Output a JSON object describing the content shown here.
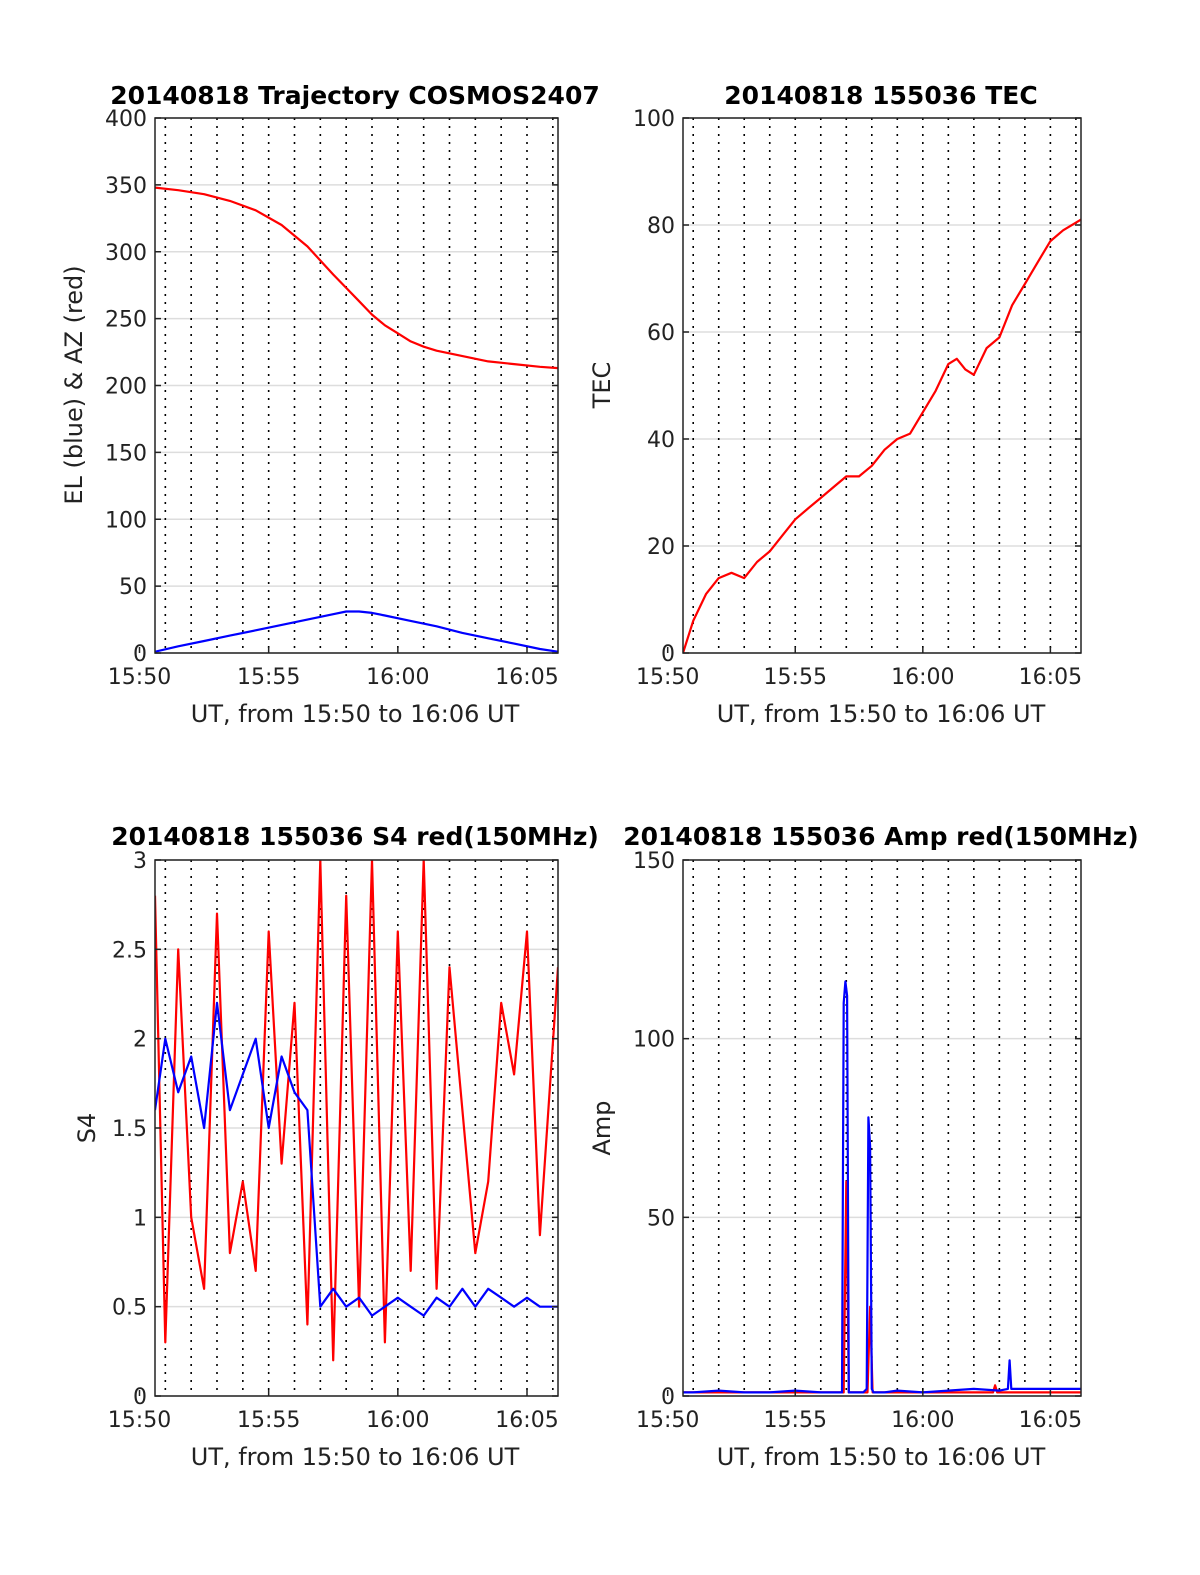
{
  "figure": {
    "colors": {
      "red": "#ff0000",
      "blue": "#0000ff",
      "grid_h": "#dddddd",
      "grid_v": "#000000",
      "axes": "#222222"
    }
  },
  "chart_data": [
    {
      "id": "traj",
      "type": "line",
      "title": "20140818 Trajectory COSMOS2407",
      "xlabel": "UT, from 15:50 to 16:06 UT",
      "ylabel": "EL (blue) & AZ (red)",
      "xlim_minutes": [
        950.6,
        966.2
      ],
      "ylim": [
        0,
        400
      ],
      "yticks": [
        0,
        50,
        100,
        150,
        200,
        250,
        300,
        350,
        400
      ],
      "ytick_labels": [
        "0",
        "50",
        "100",
        "150",
        "200",
        "250",
        "300",
        "350",
        "400"
      ],
      "xticks": [
        "15:50",
        "15:55",
        "16:00",
        "16:05"
      ],
      "xtick_minutes": [
        950,
        955,
        960,
        965
      ],
      "series": [
        {
          "color": "#ff0000",
          "x": [
            "15:50:36",
            "15:51:30",
            "15:52:30",
            "15:53:30",
            "15:54:30",
            "15:55:30",
            "15:56:30",
            "15:57:30",
            "15:58:00",
            "15:58:30",
            "15:59:00",
            "15:59:30",
            "16:00:00",
            "16:00:30",
            "16:01:00",
            "16:01:30",
            "16:02:30",
            "16:03:30",
            "16:04:30",
            "16:05:30",
            "16:06:12"
          ],
          "y": [
            348,
            346,
            343,
            338,
            331,
            320,
            304,
            283,
            273,
            263,
            253,
            245,
            239,
            233,
            229,
            226,
            222,
            218,
            216,
            214,
            213
          ]
        },
        {
          "color": "#0000ff",
          "x": [
            "15:50:36",
            "15:51:30",
            "15:52:30",
            "15:53:30",
            "15:54:30",
            "15:55:30",
            "15:56:30",
            "15:57:30",
            "15:58:00",
            "15:58:30",
            "15:59:00",
            "15:59:30",
            "16:00:30",
            "16:01:30",
            "16:02:30",
            "16:03:30",
            "16:04:30",
            "16:05:30",
            "16:06:12"
          ],
          "y": [
            1,
            5,
            9,
            13,
            17,
            21,
            25,
            29,
            31,
            31,
            30,
            28,
            24,
            20,
            15,
            11,
            7,
            3,
            1
          ]
        }
      ]
    },
    {
      "id": "tec",
      "type": "line",
      "title": "20140818 155036 TEC",
      "xlabel": "UT, from 15:50 to 16:06 UT",
      "ylabel": "TEC",
      "xlim_minutes": [
        950.6,
        966.2
      ],
      "ylim": [
        0,
        100
      ],
      "yticks": [
        0,
        20,
        40,
        60,
        80,
        100
      ],
      "ytick_labels": [
        "0",
        "20",
        "40",
        "60",
        "80",
        "100"
      ],
      "xticks": [
        "15:50",
        "15:55",
        "16:00",
        "16:05"
      ],
      "xtick_minutes": [
        950,
        955,
        960,
        965
      ],
      "series": [
        {
          "color": "#ff0000",
          "x": [
            "15:50:36",
            "15:51:00",
            "15:51:30",
            "15:52:00",
            "15:52:30",
            "15:53:00",
            "15:53:30",
            "15:54:00",
            "15:54:30",
            "15:55:00",
            "15:55:30",
            "15:56:00",
            "15:56:30",
            "15:57:00",
            "15:57:30",
            "15:58:00",
            "15:58:30",
            "15:59:00",
            "15:59:30",
            "16:00:00",
            "16:00:30",
            "16:01:00",
            "16:01:20",
            "16:01:40",
            "16:02:00",
            "16:02:30",
            "16:03:00",
            "16:03:30",
            "16:04:00",
            "16:04:30",
            "16:05:00",
            "16:05:30",
            "16:06:12"
          ],
          "y": [
            0,
            6,
            11,
            14,
            15,
            14,
            17,
            19,
            22,
            25,
            27,
            29,
            31,
            33,
            33,
            35,
            38,
            40,
            41,
            45,
            49,
            54,
            55,
            53,
            52,
            57,
            59,
            65,
            69,
            73,
            77,
            79,
            81
          ]
        }
      ]
    },
    {
      "id": "s4",
      "type": "line",
      "title": "20140818 155036 S4 red(150MHz)",
      "xlabel": "UT, from 15:50 to 16:06 UT",
      "ylabel": "S4",
      "xlim_minutes": [
        950.6,
        966.2
      ],
      "ylim": [
        0,
        3
      ],
      "yticks": [
        0,
        0.5,
        1,
        1.5,
        2,
        2.5,
        3
      ],
      "ytick_labels": [
        "0",
        "0.5",
        "1",
        "1.5",
        "2",
        "2.5",
        "3"
      ],
      "xticks": [
        "15:50",
        "15:55",
        "16:00",
        "16:05"
      ],
      "xtick_minutes": [
        950,
        955,
        960,
        965
      ],
      "series": [
        {
          "color": "#ff0000",
          "x": [
            "15:50:36",
            "15:51:00",
            "15:51:30",
            "15:52:00",
            "15:52:30",
            "15:53:00",
            "15:53:30",
            "15:54:00",
            "15:54:30",
            "15:55:00",
            "15:55:30",
            "15:56:00",
            "15:56:30",
            "15:57:00",
            "15:57:30",
            "15:58:00",
            "15:58:30",
            "15:59:00",
            "15:59:30",
            "16:00:00",
            "16:00:30",
            "16:01:00",
            "16:01:30",
            "16:02:00",
            "16:02:30",
            "16:03:00",
            "16:03:30",
            "16:04:00",
            "16:04:30",
            "16:05:00",
            "16:05:30",
            "16:06:12"
          ],
          "y": [
            2.8,
            0.3,
            2.5,
            1.0,
            0.6,
            2.7,
            0.8,
            1.2,
            0.7,
            2.6,
            1.3,
            2.2,
            0.4,
            3.0,
            0.2,
            2.8,
            0.5,
            3.0,
            0.3,
            2.6,
            0.7,
            3.0,
            0.6,
            2.4,
            1.6,
            0.8,
            1.2,
            2.2,
            1.8,
            2.6,
            0.9,
            2.4
          ]
        },
        {
          "color": "#0000ff",
          "x": [
            "15:50:36",
            "15:51:00",
            "15:51:30",
            "15:52:00",
            "15:52:30",
            "15:53:00",
            "15:53:30",
            "15:54:00",
            "15:54:30",
            "15:55:00",
            "15:55:30",
            "15:56:00",
            "15:56:30",
            "15:57:00",
            "15:57:30",
            "15:58:00",
            "15:58:30",
            "15:59:00",
            "15:59:30",
            "16:00:00",
            "16:00:30",
            "16:01:00",
            "16:01:30",
            "16:02:00",
            "16:02:30",
            "16:03:00",
            "16:03:30",
            "16:04:00",
            "16:04:30",
            "16:05:00",
            "16:05:30",
            "16:06:12"
          ],
          "y": [
            1.6,
            2.0,
            1.7,
            1.9,
            1.5,
            2.2,
            1.6,
            1.8,
            2.0,
            1.5,
            1.9,
            1.7,
            1.6,
            0.5,
            0.6,
            0.5,
            0.55,
            0.45,
            0.5,
            0.55,
            0.5,
            0.45,
            0.55,
            0.5,
            0.6,
            0.5,
            0.6,
            0.55,
            0.5,
            0.55,
            0.5,
            0.5
          ]
        }
      ]
    },
    {
      "id": "amp",
      "type": "line",
      "title": "20140818 155036 Amp red(150MHz)",
      "xlabel": "UT, from 15:50 to 16:06 UT",
      "ylabel": "Amp",
      "xlim_minutes": [
        950.6,
        966.2
      ],
      "ylim": [
        0,
        150
      ],
      "yticks": [
        0,
        50,
        100,
        150
      ],
      "ytick_labels": [
        "0",
        "50",
        "100",
        "150"
      ],
      "xticks": [
        "15:50",
        "15:55",
        "16:00",
        "16:05"
      ],
      "xtick_minutes": [
        950,
        955,
        960,
        965
      ],
      "series": [
        {
          "color": "#ff0000",
          "x": [
            "15:50:36",
            "15:55:00",
            "15:56:54",
            "15:57:00",
            "15:57:06",
            "15:57:50",
            "15:57:56",
            "15:58:02",
            "16:00:00",
            "16:02:45",
            "16:02:50",
            "16:02:55",
            "16:06:12"
          ],
          "y": [
            1,
            1,
            1,
            60,
            1,
            1,
            25,
            1,
            1,
            1,
            3,
            1,
            1
          ]
        },
        {
          "color": "#0000ff",
          "x": [
            "15:50:36",
            "15:51:00",
            "15:52:00",
            "15:53:00",
            "15:54:00",
            "15:55:00",
            "15:56:00",
            "15:56:50",
            "15:56:54",
            "15:56:58",
            "15:57:02",
            "15:57:06",
            "15:57:40",
            "15:57:48",
            "15:57:52",
            "15:57:56",
            "15:58:00",
            "15:58:04",
            "15:58:30",
            "15:59:00",
            "16:00:00",
            "16:01:00",
            "16:02:00",
            "16:03:00",
            "16:03:20",
            "16:03:24",
            "16:03:28",
            "16:04:00",
            "16:05:00",
            "16:06:12"
          ],
          "y": [
            1,
            1,
            1.5,
            1,
            1,
            1.5,
            1,
            1,
            110,
            116,
            112,
            1,
            1,
            2,
            78,
            70,
            2,
            1,
            1,
            1.5,
            1,
            1.5,
            2,
            1.5,
            2,
            10,
            2,
            2,
            2,
            2
          ]
        }
      ]
    }
  ]
}
